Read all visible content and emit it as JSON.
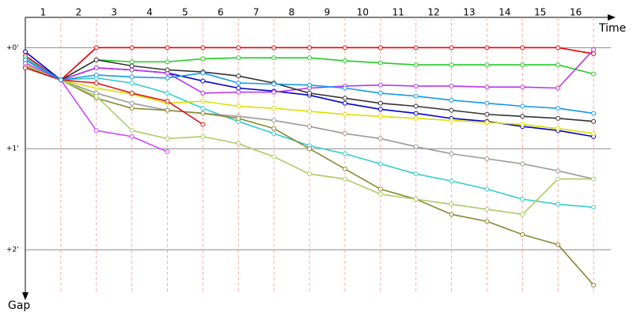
{
  "chart_data": {
    "type": "line",
    "x_label": "Time",
    "y_label": "Gap",
    "x": [
      0,
      1,
      2,
      3,
      4,
      5,
      6,
      7,
      8,
      9,
      10,
      11,
      12,
      13,
      14,
      15,
      16
    ],
    "xlim": [
      0,
      17
    ],
    "xticks": [
      {
        "value": 0.5,
        "label": "1"
      },
      {
        "value": 1.5,
        "label": "2"
      },
      {
        "value": 2.5,
        "label": "3"
      },
      {
        "value": 3.5,
        "label": "4"
      },
      {
        "value": 4.5,
        "label": "5"
      },
      {
        "value": 5.5,
        "label": "6"
      },
      {
        "value": 6.5,
        "label": "7"
      },
      {
        "value": 7.5,
        "label": "8"
      },
      {
        "value": 8.5,
        "label": "9"
      },
      {
        "value": 9.5,
        "label": "10"
      },
      {
        "value": 10.5,
        "label": "11"
      },
      {
        "value": 11.5,
        "label": "12"
      },
      {
        "value": 12.5,
        "label": "13"
      },
      {
        "value": 13.5,
        "label": "14"
      },
      {
        "value": 14.5,
        "label": "15"
      },
      {
        "value": 15.5,
        "label": "16"
      }
    ],
    "ylim": [
      -0.3,
      2.5
    ],
    "yticks": [
      {
        "value": 0,
        "label": "+0'"
      },
      {
        "value": 1,
        "label": "+1'"
      },
      {
        "value": 2,
        "label": "+2'"
      }
    ],
    "inverted_y": true,
    "grid": true,
    "series": [
      {
        "color": "#ee0000",
        "values": [
          0.08,
          0.32,
          0,
          0,
          0,
          0,
          0,
          0,
          0,
          0,
          0,
          0,
          0,
          0,
          0,
          0,
          0.06
        ]
      },
      {
        "color": "#22cc22",
        "values": [
          0.15,
          0.32,
          0.12,
          0.14,
          0.14,
          0.11,
          0.1,
          0.1,
          0.1,
          0.13,
          0.15,
          0.17,
          0.17,
          0.17,
          0.17,
          0.17,
          0.26
        ]
      },
      {
        "color": "#0000cc",
        "values": [
          0.04,
          0.32,
          0.2,
          0.22,
          0.25,
          0.33,
          0.4,
          0.43,
          0.47,
          0.55,
          0.61,
          0.65,
          0.7,
          0.73,
          0.78,
          0.82,
          0.88
        ]
      },
      {
        "color": "#33cccc",
        "values": [
          0.1,
          0.32,
          0.3,
          0.35,
          0.45,
          0.6,
          0.73,
          0.85,
          0.97,
          1.05,
          1.15,
          1.25,
          1.32,
          1.4,
          1.5,
          1.55,
          1.58
        ]
      },
      {
        "color": "#999999",
        "values": [
          0.2,
          0.32,
          0.45,
          0.55,
          0.62,
          0.65,
          0.68,
          0.72,
          0.78,
          0.85,
          0.9,
          0.98,
          1.05,
          1.1,
          1.15,
          1.22,
          1.3
        ]
      },
      {
        "color": "#888833",
        "values": [
          0.18,
          0.32,
          0.5,
          0.6,
          0.62,
          0.65,
          0.7,
          0.8,
          1.0,
          1.2,
          1.4,
          1.5,
          1.65,
          1.72,
          1.85,
          1.95,
          2.35
        ]
      },
      {
        "color": "#aacc66",
        "values": [
          0.17,
          0.32,
          0.48,
          0.82,
          0.9,
          0.88,
          0.95,
          1.08,
          1.25,
          1.3,
          1.45,
          1.5,
          1.55,
          1.6,
          1.65,
          1.3,
          1.3
        ]
      },
      {
        "color": "#dddd00",
        "values": [
          0.15,
          0.32,
          0.4,
          0.46,
          0.55,
          0.53,
          0.58,
          0.6,
          0.63,
          0.66,
          0.68,
          0.7,
          0.72,
          0.74,
          0.76,
          0.8,
          0.85
        ]
      },
      {
        "color": "#cc44ff",
        "values": [
          0.15,
          0.32,
          0.82,
          0.88,
          1.03,
          null,
          null,
          null,
          null,
          null,
          null,
          null,
          null,
          null,
          null,
          null,
          null
        ]
      },
      {
        "color": "#bb33ee",
        "values": [
          0.12,
          0.32,
          0.2,
          0.22,
          0.25,
          0.45,
          0.44,
          0.44,
          0.4,
          0.38,
          0.37,
          0.38,
          0.38,
          0.39,
          0.39,
          0.4,
          0.02
        ]
      },
      {
        "color": "#dd1111",
        "values": [
          0.2,
          0.32,
          0.35,
          0.45,
          0.53,
          0.76,
          null,
          null,
          null,
          null,
          null,
          null,
          null,
          null,
          null,
          null,
          null
        ]
      },
      {
        "color": "#333333",
        "values": [
          0.12,
          0.32,
          0.12,
          0.18,
          0.22,
          0.24,
          0.28,
          0.35,
          0.45,
          0.5,
          0.55,
          0.58,
          0.62,
          0.66,
          0.68,
          0.7,
          0.73
        ]
      },
      {
        "color": "#1199ee",
        "values": [
          0.12,
          0.32,
          0.27,
          0.29,
          0.3,
          0.25,
          0.35,
          0.36,
          0.37,
          0.4,
          0.45,
          0.48,
          0.52,
          0.55,
          0.58,
          0.6,
          0.65
        ]
      }
    ]
  }
}
